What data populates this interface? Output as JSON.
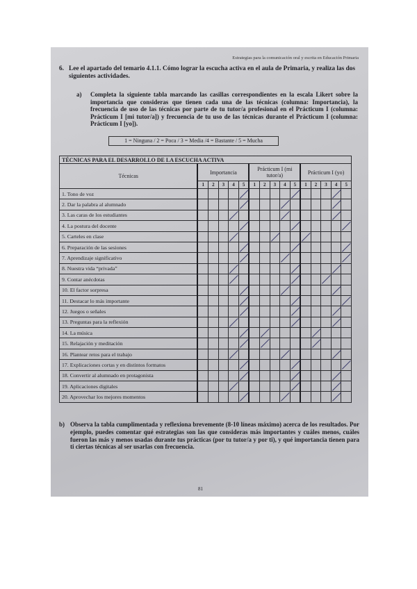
{
  "running_header": "Estrategias para la comunicación oral y escrita en Educación Primaria",
  "question6": {
    "number": "6.",
    "text": "Lee el apartado del temario 4.1.1. Cómo lograr la escucha activa en el aula de Primaria, y realiza las dos siguientes actividades."
  },
  "part_a": {
    "label": "a)",
    "text": "Completa la siguiente tabla marcando las casillas correspondientes en la escala Likert sobre la importancia que consideras que tienen cada una de las técnicas (columna: Importancia), la frecuencia de uso de las técnicas por parte de tu tutor/a profesional en el Prácticum I (columna: Prácticum I [mi tutor/a]) y frecuencia de tu uso de las técnicas durante el Prácticum I (columna: Prácticum I [yo])."
  },
  "scale_legend": "1 = Ninguna / 2 = Poca / 3 = Media /4 = Bastante / 5 = Mucha",
  "table": {
    "title": "TÉCNICAS PARA EL DESARROLLO DE LA ESCUCHA ACTIVA",
    "col_tecnicas": "Técnicas",
    "groups": [
      "Importancia",
      "Prácticum I (mi tutor/a)",
      "Prácticum I (yo)"
    ],
    "scale": [
      "1",
      "2",
      "3",
      "4",
      "5"
    ],
    "rows": [
      {
        "label": "1. Tono de voz",
        "importancia": 5,
        "tutor": 5,
        "yo": 4
      },
      {
        "label": "2. Dar la palabra al alumnado",
        "importancia": 5,
        "tutor": 4,
        "yo": 4
      },
      {
        "label": "3. Las caras de los estudiantes",
        "importancia": 4,
        "tutor": 4,
        "yo": 4
      },
      {
        "label": "4. La postura del docente",
        "importancia": 5,
        "tutor": 5,
        "yo": 5
      },
      {
        "label": "5. Carteles en clase",
        "importancia": 4,
        "tutor": 3,
        "yo": 1
      },
      {
        "label": "6. Preparación de las sesiones",
        "importancia": 5,
        "tutor": 5,
        "yo": 5
      },
      {
        "label": "7. Aprendizaje significativo",
        "importancia": 5,
        "tutor": 4,
        "yo": 5
      },
      {
        "label": "8. Nuestra vida “privada”",
        "importancia": 4,
        "tutor": 5,
        "yo": 4
      },
      {
        "label": "9. Contar anécdotas",
        "importancia": 4,
        "tutor": 5,
        "yo": 3
      },
      {
        "label": "10. El factor sorpresa",
        "importancia": 5,
        "tutor": 4,
        "yo": 4
      },
      {
        "label": "11. Destacar lo más importante",
        "importancia": 5,
        "tutor": 5,
        "yo": 5
      },
      {
        "label": "12. Juegos o señales",
        "importancia": 5,
        "tutor": 5,
        "yo": 4
      },
      {
        "label": "13. Preguntas para la reflexión",
        "importancia": 4,
        "tutor": 5,
        "yo": 4
      },
      {
        "label": "14. La música",
        "importancia": 5,
        "tutor": 2,
        "yo": 2
      },
      {
        "label": "15. Relajación y meditación",
        "importancia": 5,
        "tutor": 2,
        "yo": 2
      },
      {
        "label": "16. Plantear retos para el trabajo",
        "importancia": 4,
        "tutor": 4,
        "yo": 4
      },
      {
        "label": "17. Explicaciones cortas y en distintos formatos",
        "importancia": 5,
        "tutor": 5,
        "yo": 5
      },
      {
        "label": "18. Convertir al alumnado en protagonista",
        "importancia": 5,
        "tutor": 5,
        "yo": 4
      },
      {
        "label": "19. Aplicaciones digitales",
        "importancia": 4,
        "tutor": 5,
        "yo": 4
      },
      {
        "label": "20. Aprovechar los mejores momentos",
        "importancia": 5,
        "tutor": 4,
        "yo": 4
      }
    ]
  },
  "part_b": {
    "label": "b)",
    "text": "Observa la tabla cumplimentada y reflexiona brevemente (8-10 líneas máximo) acerca de los resultados. Por ejemplo, puedes comentar qué estrategias son las que consideras más importantes y cuáles menos, cuáles fueron las más y menos usadas durante tus prácticas (por tu tutor/a y por ti), y qué importancia tienen para ti ciertas técnicas al ser usarlas con frecuencia."
  },
  "page_number": "81",
  "colors": {
    "paper": "#c9c9cd",
    "ink": "#1d1d22",
    "pen": "#3a3a6a"
  }
}
